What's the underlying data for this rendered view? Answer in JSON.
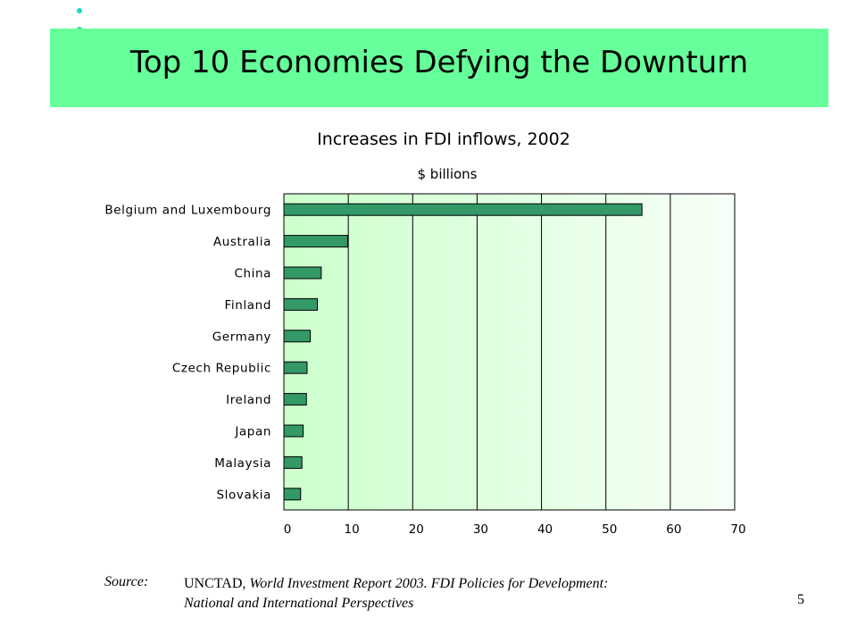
{
  "slide": {
    "title": "Top 10 Economies Defying the Downturn",
    "page_number": "5",
    "banner_color": "#66ff99",
    "bullet_color": "#19d7c8"
  },
  "source": {
    "label": "Source:",
    "org": "UNCTAD",
    "line1_rest": ", World Investment Report 2003.  FDI Policies for Development:",
    "line2": "National and International Perspectives"
  },
  "chart_data": {
    "type": "bar",
    "orientation": "horizontal",
    "title": "Increases in FDI inflows, 2002",
    "subtitle": "$ billions",
    "xlim": [
      0,
      70
    ],
    "xticks": [
      0,
      10,
      20,
      30,
      40,
      50,
      60,
      70
    ],
    "grid": true,
    "categories": [
      "Belgium and Luxembourg",
      "Australia",
      "China",
      "Finland",
      "Germany",
      "Czech Republic",
      "Ireland",
      "Japan",
      "Malaysia",
      "Slovakia"
    ],
    "values": [
      55.6,
      9.9,
      5.8,
      5.2,
      4.1,
      3.6,
      3.5,
      3.0,
      2.8,
      2.6
    ],
    "bar_color": "#339966"
  }
}
